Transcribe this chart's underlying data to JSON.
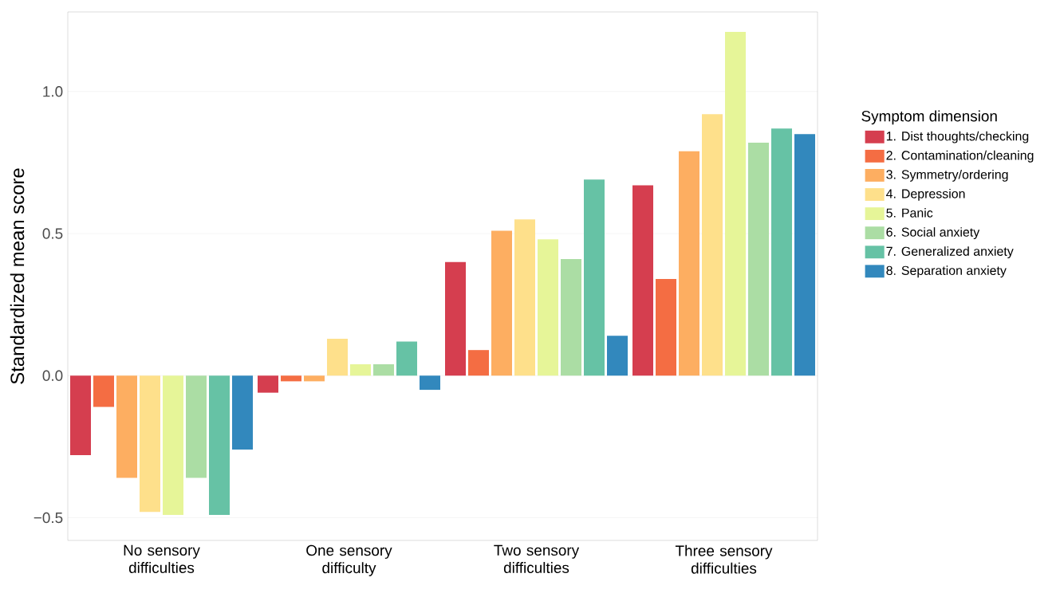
{
  "chart_data": {
    "type": "bar",
    "ylabel": "Standardized mean score",
    "legend_title": "Symptom dimension",
    "legend": "right",
    "grid": "y",
    "categories": [
      "No sensory difficulties",
      "One sensory difficulty",
      "Two sensory difficulties",
      "Three sensory difficulties"
    ],
    "ylim": [
      -0.58,
      1.28
    ],
    "yticks": [
      {
        "value": -0.5,
        "label": "−0.5"
      },
      {
        "value": 0,
        "label": "0.0"
      },
      {
        "value": 0.5,
        "label": "0.5"
      },
      {
        "value": 1,
        "label": "1.0"
      }
    ],
    "series": [
      {
        "name": "1. Dist thoughts/checking",
        "color": "#d53e4f",
        "values": [
          -0.28,
          -0.06,
          0.4,
          0.67
        ]
      },
      {
        "name": "2. Contamination/cleaning",
        "color": "#f46d43",
        "values": [
          -0.11,
          -0.02,
          0.09,
          0.34
        ]
      },
      {
        "name": "3. Symmetry/ordering",
        "color": "#fdae61",
        "values": [
          -0.36,
          -0.02,
          0.51,
          0.79
        ]
      },
      {
        "name": "4. Depression",
        "color": "#fee08b",
        "values": [
          -0.48,
          0.13,
          0.55,
          0.92
        ]
      },
      {
        "name": "5. Panic",
        "color": "#e6f598",
        "values": [
          -0.49,
          0.04,
          0.48,
          1.21
        ]
      },
      {
        "name": "6. Social anxiety",
        "color": "#abdda4",
        "values": [
          -0.36,
          0.04,
          0.41,
          0.82
        ]
      },
      {
        "name": "7. Generalized anxiety",
        "color": "#66c2a5",
        "values": [
          -0.49,
          0.12,
          0.69,
          0.87
        ]
      },
      {
        "name": "8. Separation anxiety",
        "color": "#3288bd",
        "values": [
          -0.26,
          -0.05,
          0.14,
          0.85
        ]
      }
    ]
  }
}
